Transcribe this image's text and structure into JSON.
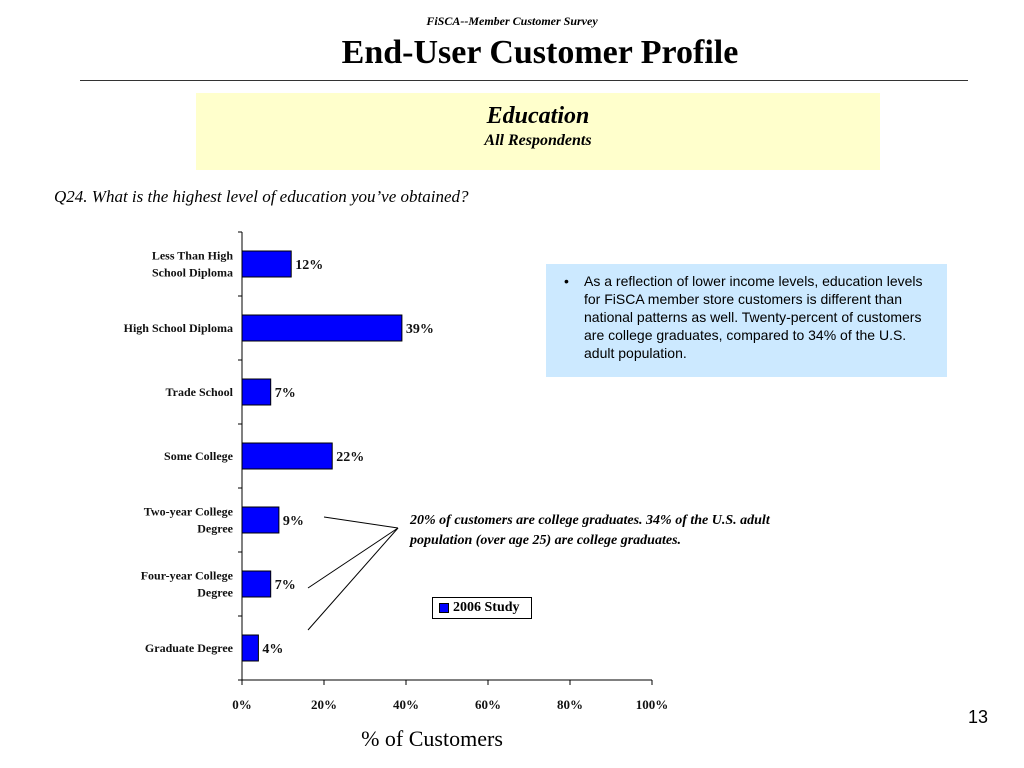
{
  "header": {
    "survey_label": "FiSCA--Member Customer Survey",
    "title": "End-User Customer Profile"
  },
  "subtitle": {
    "main": "Education",
    "sub": "All Respondents"
  },
  "question": "Q24. What is the highest level of education you’ve obtained?",
  "note": {
    "bullet": "•",
    "text": "As a reflection of lower income levels, education levels for FiSCA member store customers is different than national patterns as well.  Twenty-percent of customers are college graduates, compared to 34% of the U.S. adult population."
  },
  "callout": "20% of customers are college graduates.  34% of the U.S. adult population (over age 25) are college graduates.",
  "page_number": "13",
  "colors": {
    "bar": "#0000ff",
    "subtitle_bg": "#ffffcc",
    "note_bg": "#cce9ff"
  },
  "chart_data": {
    "type": "bar",
    "orientation": "horizontal",
    "categories": [
      [
        "Less Than High",
        "School Diploma"
      ],
      [
        "High School Diploma"
      ],
      [
        "Trade School"
      ],
      [
        "Some College"
      ],
      [
        "Two-year College",
        "Degree"
      ],
      [
        "Four-year College",
        "Degree"
      ],
      [
        "Graduate Degree"
      ]
    ],
    "series": [
      {
        "name": "2006 Study",
        "values": [
          12,
          39,
          7,
          22,
          9,
          7,
          4
        ]
      }
    ],
    "value_labels": [
      "12%",
      "39%",
      "7%",
      "22%",
      "9%",
      "7%",
      "4%"
    ],
    "xlim": [
      0,
      100
    ],
    "xticks": [
      0,
      20,
      40,
      60,
      80,
      100
    ],
    "xtick_labels": [
      "0%",
      "20%",
      "40%",
      "60%",
      "80%",
      "100%"
    ],
    "xlabel": "% of Customers",
    "grid": false,
    "legend": "right, middle"
  }
}
